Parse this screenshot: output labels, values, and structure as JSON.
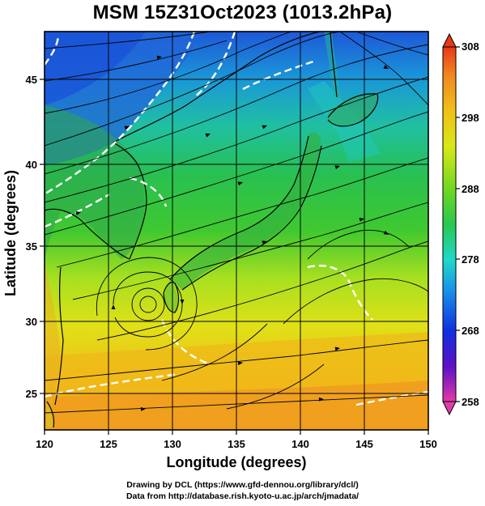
{
  "title": "MSM 15Z31Oct2023 (1013.2hPa)",
  "axes": {
    "xlabel": "Longitude (degrees)",
    "ylabel": "Latitude  (degrees)",
    "x_ticks": [
      "120",
      "125",
      "130",
      "135",
      "140",
      "145",
      "150"
    ],
    "y_ticks": [
      "25",
      "30",
      "35",
      "40",
      "45"
    ]
  },
  "colorbar": {
    "labels": [
      "308",
      "298",
      "288",
      "278",
      "268",
      "258"
    ],
    "min": 258,
    "max": 308,
    "colors": [
      "#e23aa8",
      "#5a10c8",
      "#1030e0",
      "#1898e8",
      "#20d8c8",
      "#28c850",
      "#70d820",
      "#d8e818",
      "#f0c018",
      "#f08820",
      "#e83818"
    ]
  },
  "credits": {
    "line1": "Drawing by DCL (https://www.gfd-dennou.org/library/dcl/)",
    "line2": "Data from http://database.rish.kyoto-u.ac.jp/arch/jmadata/"
  },
  "chart_data": {
    "type": "heatmap",
    "title": "MSM 15Z31Oct2023 (1013.2hPa)",
    "xlabel": "Longitude (degrees)",
    "ylabel": "Latitude  (degrees)",
    "xlim": [
      120,
      150
    ],
    "ylim": [
      22.4,
      47.6
    ],
    "clim": [
      258,
      308
    ],
    "overlay": "streamlines",
    "grid": true,
    "legend": "colorbar-right"
  }
}
